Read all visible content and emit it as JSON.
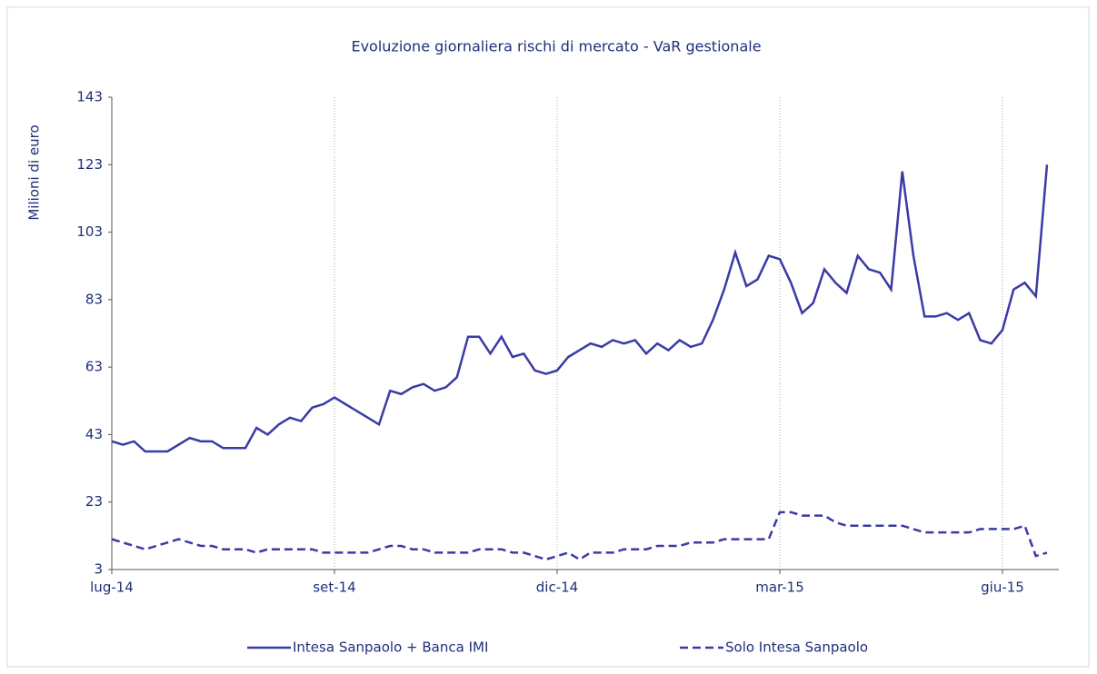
{
  "chart_data": {
    "type": "line",
    "title": "Evoluzione giornaliera rischi di mercato - VaR gestionale",
    "y_label": "Milioni di euro",
    "categories": [
      "lug-14",
      null,
      null,
      null,
      null,
      null,
      null,
      null,
      null,
      null,
      null,
      null,
      null,
      null,
      null,
      null,
      null,
      null,
      null,
      null,
      "set-14",
      null,
      null,
      null,
      null,
      null,
      null,
      null,
      null,
      null,
      null,
      null,
      null,
      null,
      null,
      null,
      null,
      null,
      null,
      null,
      "dic-14",
      null,
      null,
      null,
      null,
      null,
      null,
      null,
      null,
      null,
      null,
      null,
      null,
      null,
      null,
      null,
      null,
      null,
      null,
      null,
      "mar-15",
      null,
      null,
      null,
      null,
      null,
      null,
      null,
      null,
      null,
      null,
      null,
      null,
      null,
      null,
      null,
      null,
      null,
      null,
      null,
      "giu-15",
      null,
      null,
      null,
      null
    ],
    "series": [
      {
        "name": "Intesa Sanpaolo + Banca IMI",
        "color": "#3a3aa6",
        "dashed": false,
        "values": [
          41,
          40,
          41,
          38,
          38,
          38,
          40,
          42,
          41,
          41,
          39,
          39,
          39,
          45,
          43,
          46,
          48,
          47,
          51,
          52,
          54,
          52,
          50,
          48,
          46,
          56,
          55,
          57,
          58,
          56,
          57,
          60,
          72,
          72,
          67,
          72,
          66,
          67,
          62,
          61,
          62,
          66,
          68,
          70,
          69,
          71,
          70,
          71,
          67,
          70,
          68,
          71,
          69,
          70,
          77,
          86,
          97,
          87,
          89,
          96,
          95,
          88,
          79,
          82,
          92,
          88,
          85,
          96,
          92,
          91,
          86,
          121,
          96,
          78,
          78,
          79,
          77,
          79,
          71,
          70,
          74,
          86,
          88,
          84,
          123
        ]
      },
      {
        "name": "Solo Intesa Sanpaolo",
        "color": "#3a3aa6",
        "dashed": true,
        "values": [
          12,
          11,
          10,
          9,
          10,
          11,
          12,
          11,
          10,
          10,
          9,
          9,
          9,
          8,
          9,
          9,
          9,
          9,
          9,
          8,
          8,
          8,
          8,
          8,
          9,
          10,
          10,
          9,
          9,
          8,
          8,
          8,
          8,
          9,
          9,
          9,
          8,
          8,
          7,
          6,
          7,
          8,
          6,
          8,
          8,
          8,
          9,
          9,
          9,
          10,
          10,
          10,
          11,
          11,
          11,
          12,
          12,
          12,
          12,
          12,
          20,
          20,
          19,
          19,
          19,
          17,
          16,
          16,
          16,
          16,
          16,
          16,
          15,
          14,
          14,
          14,
          14,
          14,
          15,
          15,
          15,
          15,
          16,
          7,
          8
        ]
      }
    ],
    "ylim": [
      3,
      143
    ],
    "yticks": [
      3,
      23,
      43,
      63,
      83,
      103,
      123,
      143
    ],
    "x_grid": true
  }
}
